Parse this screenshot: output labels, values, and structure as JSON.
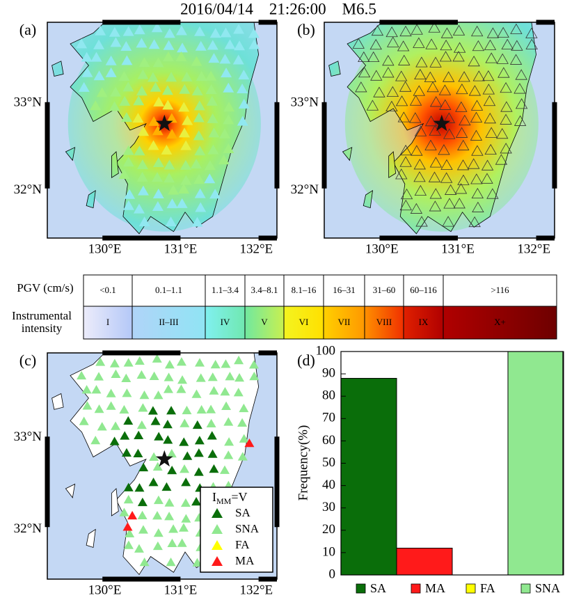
{
  "title": "2016/04/14    21:26:00    M6.5",
  "panel_labels": [
    "(a)",
    "(b)",
    "(c)"
  ],
  "map_axes": {
    "lat_labels": [
      "33°N",
      "32°N"
    ],
    "lon_labels": [
      "130°E",
      "131°E",
      "132°E"
    ]
  },
  "colorbar": {
    "pgv_label": "PGV (cm/s)",
    "intensity_label": [
      "Instrumental",
      "intensity"
    ],
    "pgv_ranges": [
      "<0.1",
      "0.1–1.1",
      "1.1–3.4",
      "3.4–8.1",
      "8.1–16",
      "16–31",
      "31–60",
      "60–116",
      ">116"
    ],
    "intensities": [
      "I",
      "II–III",
      "IV",
      "V",
      "VI",
      "VII",
      "VIII",
      "IX",
      "X+"
    ],
    "colors": [
      [
        "#ececfa",
        "#b4c8f8"
      ],
      [
        "#b0d4f8",
        "#90e4f4"
      ],
      [
        "#80f0f0",
        "#70e8b0"
      ],
      [
        "#70e8a0",
        "#c8f050"
      ],
      [
        "#f4f420",
        "#ffe000"
      ],
      [
        "#ffd000",
        "#ff9800"
      ],
      [
        "#ff9000",
        "#f03000"
      ],
      [
        "#e02000",
        "#b00000"
      ],
      [
        "#b00000",
        "#6e0000"
      ]
    ]
  },
  "legend_c": {
    "title": [
      "I",
      "MM",
      "=V"
    ],
    "entries": [
      {
        "label": "SA",
        "color": "#0a6e0a"
      },
      {
        "label": "SNA",
        "color": "#90e890"
      },
      {
        "label": "FA",
        "color": "#ffff00"
      },
      {
        "label": "MA",
        "color": "#ff1a1a"
      }
    ]
  },
  "chart_data": {
    "type": "bar",
    "panel_label": "(d)",
    "y_label": "Frequency(%)",
    "categories": [
      "SA",
      "MA",
      "FA",
      "SNA"
    ],
    "values": [
      88,
      12,
      0,
      100
    ],
    "colors": [
      "#0a6e0a",
      "#ff1a1a",
      "#ffff00",
      "#90e890"
    ],
    "ylim": [
      0,
      100
    ],
    "yticks": [
      0,
      10,
      20,
      30,
      40,
      50,
      60,
      70,
      80,
      90,
      100
    ]
  }
}
